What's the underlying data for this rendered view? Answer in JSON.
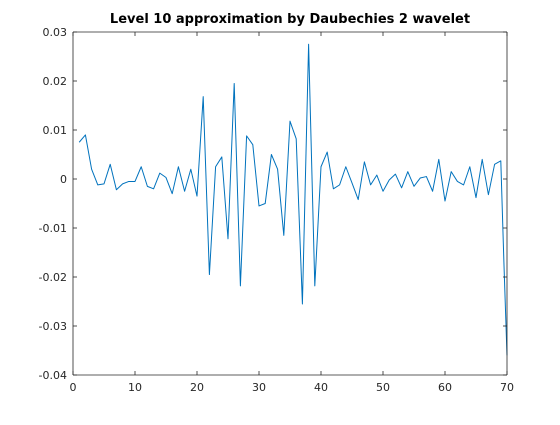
{
  "chart_data": {
    "type": "line",
    "title": "Level 10 approximation by Daubechies 2 wavelet",
    "xlabel": "",
    "ylabel": "",
    "xlim": [
      0,
      70
    ],
    "ylim": [
      -0.04,
      0.03
    ],
    "grid": false,
    "legend": "none",
    "line_color": "#0072BD",
    "axis_color": "#262626",
    "x_ticks": [
      0,
      10,
      20,
      30,
      40,
      50,
      60,
      70
    ],
    "x_tick_labels": [
      "0",
      "10",
      "20",
      "30",
      "40",
      "50",
      "60",
      "70"
    ],
    "y_ticks": [
      0.03,
      0.02,
      0.01,
      0,
      -0.01,
      -0.02,
      -0.03,
      -0.04
    ],
    "y_tick_labels": [
      "0.03",
      "0.02",
      "0.01",
      "0",
      "-0.01",
      "-0.02",
      "-0.03",
      "-0.04"
    ],
    "series": [
      {
        "x": [
          1,
          2,
          3,
          4,
          5,
          6,
          7,
          8,
          9,
          10,
          11,
          12,
          13,
          14,
          15,
          16,
          17,
          18,
          19,
          20,
          21,
          22,
          23,
          24,
          25,
          26,
          27,
          28,
          29,
          30,
          31,
          32,
          33,
          34,
          35,
          36,
          37,
          38,
          39,
          40,
          41,
          42,
          43,
          44,
          45,
          46,
          47,
          48,
          49,
          50,
          51,
          52,
          53,
          54,
          55,
          56,
          57,
          58,
          59,
          60,
          61,
          62,
          63,
          64,
          65,
          66,
          67,
          68,
          69,
          69.5,
          70
        ],
        "y": [
          0.0075,
          0.009,
          0.002,
          -0.0012,
          -0.001,
          0.003,
          -0.0022,
          -0.001,
          -0.0005,
          -0.0005,
          0.0025,
          -0.0015,
          -0.002,
          0.0012,
          0.0003,
          -0.003,
          0.0025,
          -0.0025,
          0.002,
          -0.0035,
          0.0168,
          -0.0195,
          0.0025,
          0.0045,
          -0.0122,
          0.0195,
          -0.0218,
          0.0088,
          0.007,
          -0.0055,
          -0.005,
          0.005,
          0.002,
          -0.0115,
          0.0118,
          0.0082,
          -0.0255,
          0.0275,
          -0.0218,
          0.0025,
          0.0055,
          -0.002,
          -0.0012,
          0.0025,
          -0.0008,
          -0.0042,
          0.0035,
          -0.0012,
          0.0008,
          -0.0025,
          -0.0002,
          0.001,
          -0.0018,
          0.0015,
          -0.0015,
          0.0002,
          0.0005,
          -0.0025,
          0.004,
          -0.0045,
          0.0015,
          -0.0005,
          -0.0012,
          0.0025,
          -0.0038,
          0.004,
          -0.0032,
          0.003,
          0.0037,
          -0.017,
          -0.036
        ]
      }
    ]
  }
}
